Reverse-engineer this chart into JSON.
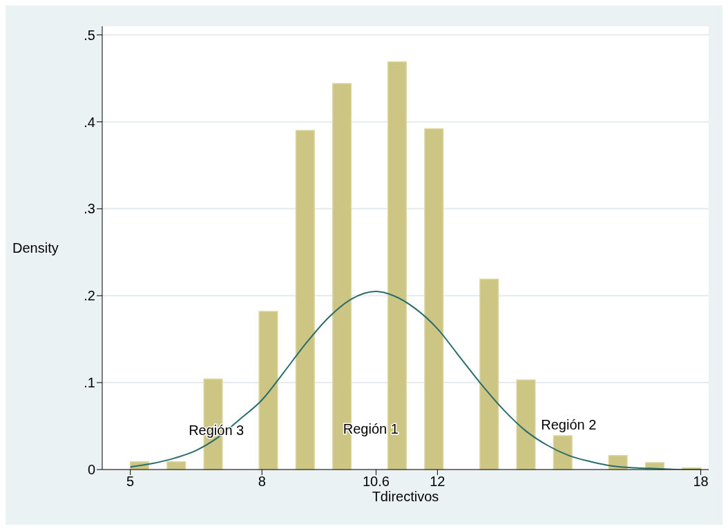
{
  "chart_data": {
    "type": "histogram",
    "xlabel": "Tdirectivos",
    "ylabel": "Density",
    "bins": [
      5,
      5.419,
      5.839,
      6.258,
      6.677,
      7.097,
      7.516,
      7.935,
      8.355,
      8.774,
      9.194,
      9.613,
      10.032,
      10.452,
      10.871,
      11.29,
      11.71,
      12.129,
      12.548,
      12.968,
      13.387,
      13.806,
      14.226,
      14.645,
      15.065,
      15.484,
      15.903,
      16.323,
      16.742,
      17.161,
      17.581,
      18
    ],
    "values": [
      0.009,
      0,
      0.009,
      0,
      0.104,
      0,
      0,
      0.182,
      0,
      0.39,
      0,
      0.444,
      0,
      0,
      0.469,
      0,
      0.392,
      0,
      0,
      0.219,
      0,
      0.103,
      0,
      0.039,
      0,
      0,
      0.016,
      0,
      0.008,
      0,
      0.002
    ],
    "color": "#cdc583",
    "series": [
      {
        "type": "line",
        "color": "#2a6b6b",
        "x": [
          5,
          5.5,
          6,
          6.5,
          7,
          7.5,
          8,
          8.5,
          9,
          9.5,
          10,
          10.6,
          11,
          11.5,
          12,
          12.5,
          13,
          13.5,
          14,
          14.5,
          15,
          15.5,
          16,
          16.5,
          17,
          17.5,
          18
        ],
        "values": [
          0.003,
          0.007,
          0.013,
          0.022,
          0.037,
          0.058,
          0.08,
          0.112,
          0.145,
          0.174,
          0.195,
          0.205,
          0.2,
          0.185,
          0.162,
          0.13,
          0.098,
          0.069,
          0.045,
          0.028,
          0.016,
          0.009,
          0.004,
          0.002,
          0.001,
          0,
          0
        ]
      }
    ],
    "xlim": [
      4.36,
      18.18
    ],
    "xticks": [
      5,
      8,
      10.6,
      12,
      18
    ],
    "ylim": [
      0,
      0.51
    ],
    "yticks": [
      0,
      {
        "value": 0.1,
        "label": ".1"
      },
      {
        "value": 0.2,
        "label": ".2"
      },
      {
        "value": 0.3,
        "label": ".3"
      },
      {
        "value": 0.4,
        "label": ".4"
      },
      {
        "value": 0.5,
        "label": ".5"
      }
    ],
    "grid": "y",
    "annotations": [
      "Región 3",
      "Región 1",
      "Región 2"
    ]
  }
}
